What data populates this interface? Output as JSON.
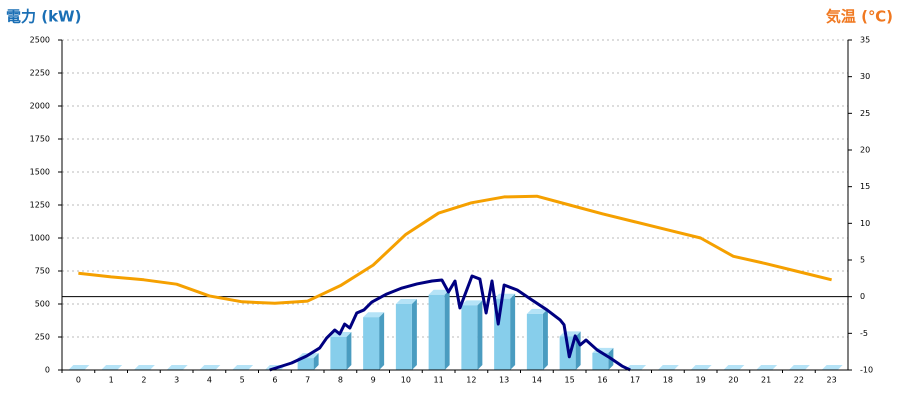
{
  "chart_data": {
    "type": "bar",
    "y_label": "電力 (kW)",
    "y2_label": "気温 (℃)",
    "categories": [
      "0",
      "1",
      "2",
      "3",
      "4",
      "5",
      "6",
      "7",
      "8",
      "9",
      "10",
      "11",
      "12",
      "13",
      "14",
      "15",
      "16",
      "17",
      "18",
      "19",
      "20",
      "21",
      "22",
      "23"
    ],
    "ylim": [
      0,
      2500
    ],
    "yticks": [
      0,
      250,
      500,
      750,
      1000,
      1250,
      1500,
      1750,
      2000,
      2250,
      2500
    ],
    "y2lim": [
      -10,
      35
    ],
    "y2ticks": [
      -10,
      -5,
      0,
      5,
      10,
      15,
      20,
      25,
      30,
      35
    ],
    "grid": true,
    "series": [
      {
        "type": "bar",
        "color": "#87ceeb",
        "values": [
          0,
          0,
          0,
          0,
          0,
          0,
          0,
          90,
          250,
          400,
          500,
          570,
          490,
          540,
          425,
          255,
          130,
          0,
          0,
          0,
          0,
          0,
          0,
          0
        ]
      },
      {
        "type": "line",
        "axis": "y2",
        "color": "#f5a000",
        "values": [
          3.2,
          2.7,
          2.3,
          1.7,
          0.1,
          -0.7,
          -0.9,
          -0.6,
          1.5,
          4.3,
          8.5,
          11.4,
          12.8,
          13.6,
          13.7,
          12.5,
          11.3,
          10.2,
          9.1,
          8.0,
          5.5,
          4.5,
          3.4,
          2.3
        ]
      },
      {
        "type": "line",
        "color": "#000080",
        "x": [
          5.84,
          6.51,
          6.97,
          7.37,
          7.58,
          7.83,
          7.98,
          8.13,
          8.29,
          8.5,
          8.72,
          8.96,
          9.42,
          9.88,
          10.34,
          10.8,
          11.1,
          11.3,
          11.5,
          11.65,
          12.02,
          12.26,
          12.45,
          12.63,
          12.82,
          13.0,
          13.4,
          13.85,
          14.31,
          14.71,
          14.83,
          14.99,
          15.17,
          15.32,
          15.5,
          15.84,
          16.24,
          16.6,
          16.85
        ],
        "values": [
          0,
          53,
          106,
          167,
          242,
          303,
          273,
          348,
          318,
          432,
          455,
          515,
          576,
          621,
          652,
          674,
          682,
          591,
          674,
          470,
          712,
          689,
          432,
          674,
          348,
          644,
          606,
          530,
          455,
          379,
          342,
          100,
          258,
          190,
          227,
          152,
          91,
          30,
          0
        ]
      }
    ]
  }
}
